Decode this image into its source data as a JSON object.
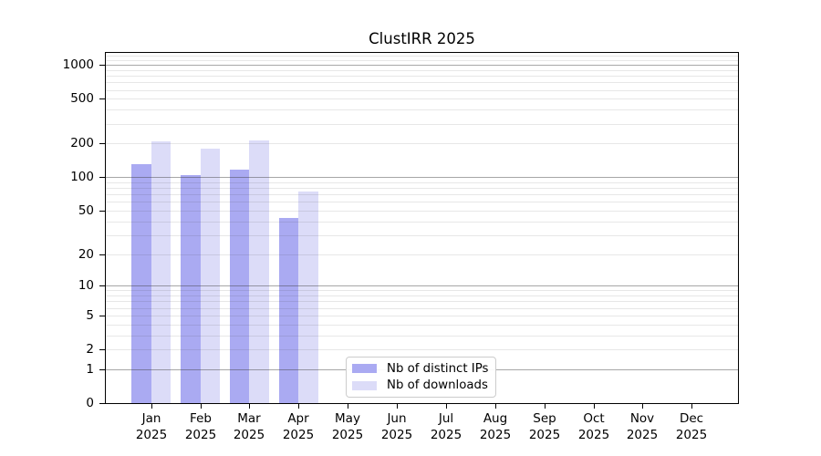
{
  "chart_data": {
    "type": "bar",
    "title": "ClustIRR 2025",
    "categories": [
      "Jan 2025",
      "Feb 2025",
      "Mar 2025",
      "Apr 2025",
      "May 2025",
      "Jun 2025",
      "Jul 2025",
      "Aug 2025",
      "Sep 2025",
      "Oct 2025",
      "Nov 2025",
      "Dec 2025"
    ],
    "series": [
      {
        "name": "Nb of distinct IPs",
        "color": "#aaaaf2",
        "values": [
          130,
          104,
          118,
          43,
          0,
          0,
          0,
          0,
          0,
          0,
          0,
          0
        ]
      },
      {
        "name": "Nb of downloads",
        "color": "#dcdcf8",
        "values": [
          210,
          180,
          215,
          74,
          0,
          0,
          0,
          0,
          0,
          0,
          0,
          0
        ]
      }
    ],
    "xlabel": "",
    "ylabel": "",
    "yscale": "log1p",
    "yticks": [
      0,
      1,
      2,
      5,
      10,
      20,
      50,
      100,
      200,
      500,
      1000
    ],
    "ylim": [
      0,
      1280
    ],
    "grid": true,
    "legend_position": "lower center"
  }
}
